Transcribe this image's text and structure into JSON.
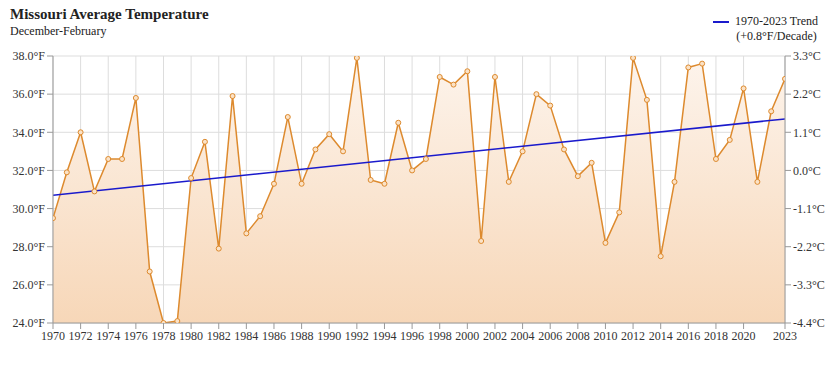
{
  "chart_data": {
    "type": "line",
    "title": "Missouri Average Temperature",
    "subtitle": "December-February",
    "x": [
      1970,
      1971,
      1972,
      1973,
      1974,
      1975,
      1976,
      1977,
      1978,
      1979,
      1980,
      1981,
      1982,
      1983,
      1984,
      1985,
      1986,
      1987,
      1988,
      1989,
      1990,
      1991,
      1992,
      1993,
      1994,
      1995,
      1996,
      1997,
      1998,
      1999,
      2000,
      2001,
      2002,
      2003,
      2004,
      2005,
      2006,
      2007,
      2008,
      2009,
      2010,
      2011,
      2012,
      2013,
      2014,
      2015,
      2016,
      2017,
      2018,
      2019,
      2020,
      2021,
      2022,
      2023
    ],
    "series": [
      {
        "color": "#dd8a2e",
        "marker": "circle",
        "values": [
          29.5,
          31.9,
          34.0,
          30.9,
          32.6,
          32.6,
          35.8,
          26.7,
          24.0,
          24.1,
          31.6,
          33.5,
          27.9,
          35.9,
          28.7,
          29.6,
          31.3,
          34.8,
          31.3,
          33.1,
          33.9,
          33.0,
          37.9,
          31.5,
          31.3,
          34.5,
          32.0,
          32.6,
          36.9,
          36.5,
          37.2,
          28.3,
          36.9,
          31.4,
          33.0,
          36.0,
          35.4,
          33.1,
          31.7,
          32.4,
          28.2,
          29.8,
          37.9,
          35.7,
          27.5,
          31.4,
          37.4,
          37.6,
          32.6,
          33.6,
          36.3,
          31.4,
          35.1,
          36.8
        ]
      }
    ],
    "trend": {
      "name": "1970-2023 Trend (+0.8°F/Decade)",
      "color": "#1a1acc",
      "x": [
        1970,
        2023
      ],
      "values": [
        30.7,
        34.7
      ]
    },
    "xlim": [
      1970,
      2023
    ],
    "xticks": [
      1970,
      1972,
      1974,
      1976,
      1978,
      1980,
      1982,
      1984,
      1986,
      1988,
      1990,
      1992,
      1994,
      1996,
      1998,
      2000,
      2002,
      2004,
      2006,
      2008,
      2010,
      2012,
      2014,
      2016,
      2018,
      2020,
      2023
    ],
    "ylim": [
      24,
      38
    ],
    "yticks": [
      {
        "value": 24,
        "label": "24.0°F"
      },
      {
        "value": 26,
        "label": "26.0°F"
      },
      {
        "value": 28,
        "label": "28.0°F"
      },
      {
        "value": 30,
        "label": "30.0°F"
      },
      {
        "value": 32,
        "label": "32.0°F"
      },
      {
        "value": 34,
        "label": "34.0°F"
      },
      {
        "value": 36,
        "label": "36.0°F"
      },
      {
        "value": 38,
        "label": "38.0°F"
      }
    ],
    "y2lim": [
      -4.444,
      3.333
    ],
    "y2ticks": [
      {
        "value": -4.444,
        "label": "-4.4°C"
      },
      {
        "value": -3.333,
        "label": "-3.3°C"
      },
      {
        "value": -2.222,
        "label": "-2.2°C"
      },
      {
        "value": -1.111,
        "label": "-1.1°C"
      },
      {
        "value": 0,
        "label": "0.0°C"
      },
      {
        "value": 1.111,
        "label": "1.1°C"
      },
      {
        "value": 2.222,
        "label": "2.2°C"
      },
      {
        "value": 3.333,
        "label": "3.3°C"
      }
    ],
    "grid": true,
    "legend": "top-right"
  }
}
